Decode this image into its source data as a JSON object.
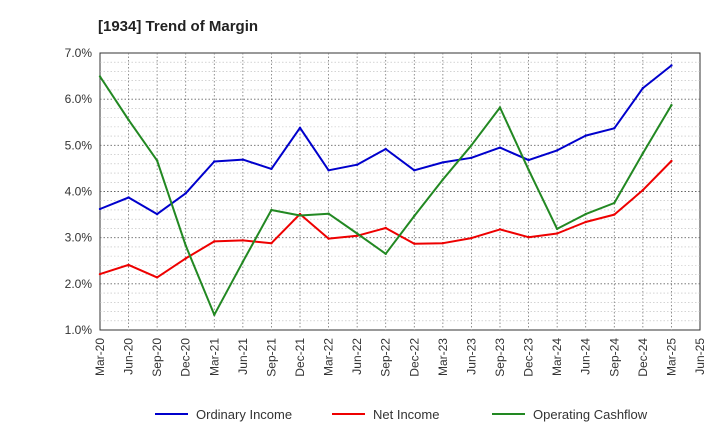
{
  "chart_data": {
    "type": "line",
    "title": "[1934]  Trend of Margin",
    "xlabel": "",
    "ylabel": "",
    "ylim": [
      1.0,
      7.0
    ],
    "y_ticks": [
      "1.0%",
      "2.0%",
      "3.0%",
      "4.0%",
      "5.0%",
      "6.0%",
      "7.0%"
    ],
    "categories": [
      "Mar-20",
      "Jun-20",
      "Sep-20",
      "Dec-20",
      "Mar-21",
      "Jun-21",
      "Sep-21",
      "Dec-21",
      "Mar-22",
      "Jun-22",
      "Sep-22",
      "Dec-22",
      "Mar-23",
      "Jun-23",
      "Sep-23",
      "Dec-23",
      "Mar-24",
      "Jun-24",
      "Sep-24",
      "Dec-24",
      "Mar-25",
      "Jun-25"
    ],
    "grid": true,
    "legend_position": "bottom",
    "series": [
      {
        "name": "Ordinary Income",
        "color": "#0000cc",
        "values": [
          3.62,
          3.87,
          3.51,
          3.96,
          4.65,
          4.69,
          4.49,
          5.38,
          4.46,
          4.58,
          4.92,
          4.46,
          4.63,
          4.73,
          4.95,
          4.68,
          4.89,
          5.21,
          5.37,
          6.24,
          6.73,
          null
        ]
      },
      {
        "name": "Net Income",
        "color": "#ee0000",
        "values": [
          2.21,
          2.41,
          2.14,
          2.55,
          2.92,
          2.94,
          2.88,
          3.51,
          2.98,
          3.04,
          3.21,
          2.87,
          2.88,
          2.99,
          3.18,
          3.01,
          3.09,
          3.34,
          3.5,
          4.03,
          4.66,
          null
        ]
      },
      {
        "name": "Operating Cashflow",
        "color": "#228822",
        "values": [
          6.49,
          5.55,
          4.67,
          2.83,
          1.33,
          2.48,
          3.6,
          3.48,
          3.52,
          3.09,
          2.65,
          3.47,
          4.26,
          5.0,
          5.82,
          4.47,
          3.19,
          3.51,
          3.75,
          4.83,
          5.87,
          null
        ]
      }
    ]
  }
}
